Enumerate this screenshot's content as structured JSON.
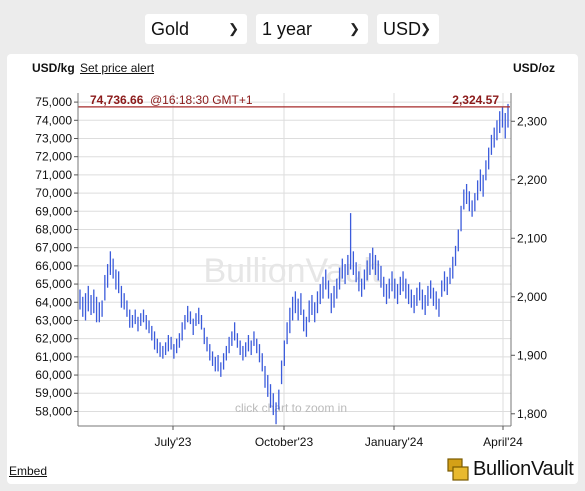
{
  "controls": {
    "metal": "Gold",
    "period": "1 year",
    "currency": "USD"
  },
  "header": {
    "left_unit": "USD/kg",
    "set_alert": "Set price alert",
    "right_unit": "USD/oz"
  },
  "footer": {
    "embed": "Embed",
    "brand": "BullionVault"
  },
  "chart_data": {
    "type": "bar",
    "watermark": "BullionVault",
    "zoom_hint": "click chart to zoom in",
    "current": {
      "price_kg": "74,736.66",
      "time": "@16:18:30 GMT+1",
      "price_oz": "2,324.57"
    },
    "y_left": {
      "unit": "USD/kg",
      "ylim": [
        57200,
        75500
      ],
      "ticks": [
        "58,000",
        "59,000",
        "60,000",
        "61,000",
        "62,000",
        "63,000",
        "64,000",
        "65,000",
        "66,000",
        "67,000",
        "68,000",
        "69,000",
        "70,000",
        "71,000",
        "72,000",
        "73,000",
        "74,000",
        "75,000"
      ]
    },
    "y_right": {
      "unit": "USD/oz",
      "ticks": [
        "1,800",
        "1,900",
        "2,000",
        "2,100",
        "2,200",
        "2,300"
      ]
    },
    "x_ticks": [
      "July'23",
      "October'23",
      "January'24",
      "April'24"
    ],
    "grid": true,
    "colors": {
      "bars": "#3b5bdb",
      "current_line": "#a52a2a",
      "grid": "#dddddd",
      "current_text": "#8b1a1a"
    },
    "daily_high_low_usd_kg": [
      [
        64700,
        63600
      ],
      [
        64300,
        63200
      ],
      [
        64500,
        63000
      ],
      [
        64900,
        63500
      ],
      [
        64400,
        63300
      ],
      [
        64700,
        63400
      ],
      [
        64300,
        62900
      ],
      [
        64000,
        62900
      ],
      [
        64100,
        63200
      ],
      [
        65500,
        64100
      ],
      [
        66100,
        64800
      ],
      [
        66800,
        65500
      ],
      [
        66400,
        65300
      ],
      [
        65800,
        64700
      ],
      [
        65700,
        64500
      ],
      [
        64900,
        63700
      ],
      [
        64500,
        63600
      ],
      [
        64100,
        63200
      ],
      [
        63600,
        62600
      ],
      [
        63300,
        62600
      ],
      [
        63600,
        62800
      ],
      [
        63200,
        62400
      ],
      [
        63400,
        62700
      ],
      [
        63600,
        62900
      ],
      [
        63300,
        62500
      ],
      [
        63000,
        62300
      ],
      [
        62700,
        61900
      ],
      [
        62400,
        61400
      ],
      [
        62000,
        61200
      ],
      [
        61800,
        61000
      ],
      [
        61600,
        60900
      ],
      [
        61800,
        61100
      ],
      [
        62200,
        61300
      ],
      [
        62100,
        61400
      ],
      [
        61700,
        60900
      ],
      [
        62000,
        61200
      ],
      [
        62300,
        61500
      ],
      [
        62900,
        61900
      ],
      [
        63300,
        62500
      ],
      [
        63800,
        62900
      ],
      [
        63500,
        62800
      ],
      [
        63100,
        62200
      ],
      [
        63400,
        62700
      ],
      [
        63700,
        62800
      ],
      [
        63300,
        62500
      ],
      [
        62600,
        61700
      ],
      [
        62100,
        61300
      ],
      [
        61700,
        60800
      ],
      [
        61300,
        60500
      ],
      [
        61000,
        60200
      ],
      [
        61100,
        60200
      ],
      [
        60700,
        59900
      ],
      [
        61200,
        60300
      ],
      [
        61600,
        60800
      ],
      [
        62100,
        61200
      ],
      [
        62400,
        61600
      ],
      [
        62900,
        61900
      ],
      [
        62300,
        61500
      ],
      [
        61900,
        61100
      ],
      [
        61600,
        60800
      ],
      [
        61800,
        61000
      ],
      [
        62200,
        61300
      ],
      [
        61900,
        61100
      ],
      [
        62400,
        61600
      ],
      [
        62000,
        61200
      ],
      [
        61700,
        60700
      ],
      [
        61200,
        60200
      ],
      [
        60500,
        59300
      ],
      [
        60000,
        58800
      ],
      [
        59500,
        58200
      ],
      [
        59000,
        57800
      ],
      [
        58500,
        57300
      ],
      [
        59200,
        58100
      ],
      [
        60800,
        59500
      ],
      [
        61900,
        60500
      ],
      [
        62900,
        61700
      ],
      [
        63700,
        62300
      ],
      [
        64300,
        63000
      ],
      [
        64600,
        63400
      ],
      [
        64200,
        63000
      ],
      [
        64500,
        63300
      ],
      [
        63600,
        62400
      ],
      [
        63200,
        62100
      ],
      [
        64100,
        62900
      ],
      [
        64400,
        63300
      ],
      [
        64000,
        62900
      ],
      [
        64600,
        63400
      ],
      [
        65000,
        63900
      ],
      [
        65400,
        64200
      ],
      [
        65800,
        64700
      ],
      [
        65200,
        64200
      ],
      [
        64500,
        63400
      ],
      [
        64900,
        63700
      ],
      [
        65300,
        64200
      ],
      [
        65900,
        64700
      ],
      [
        66400,
        65300
      ],
      [
        66100,
        65000
      ],
      [
        66600,
        65500
      ],
      [
        68900,
        65800
      ],
      [
        66800,
        65500
      ],
      [
        66200,
        65100
      ],
      [
        65700,
        64600
      ],
      [
        65300,
        64300
      ],
      [
        65800,
        64700
      ],
      [
        66300,
        65200
      ],
      [
        66700,
        65500
      ],
      [
        67000,
        65800
      ],
      [
        66600,
        65500
      ],
      [
        66300,
        65200
      ],
      [
        66000,
        64800
      ],
      [
        65400,
        64300
      ],
      [
        65000,
        63900
      ],
      [
        65300,
        64200
      ],
      [
        65700,
        64600
      ],
      [
        65300,
        64200
      ],
      [
        65000,
        63900
      ],
      [
        65400,
        64400
      ],
      [
        65700,
        64600
      ],
      [
        65300,
        64200
      ],
      [
        65000,
        63900
      ],
      [
        64700,
        63700
      ],
      [
        64400,
        63400
      ],
      [
        64800,
        63800
      ],
      [
        65100,
        64100
      ],
      [
        64700,
        63600
      ],
      [
        64400,
        63300
      ],
      [
        64900,
        63800
      ],
      [
        65200,
        64200
      ],
      [
        64800,
        63800
      ],
      [
        64600,
        63600
      ],
      [
        64200,
        63200
      ],
      [
        65200,
        64300
      ],
      [
        65700,
        64600
      ],
      [
        65400,
        64400
      ],
      [
        65900,
        65000
      ],
      [
        66500,
        65300
      ],
      [
        67100,
        66000
      ],
      [
        68000,
        66800
      ],
      [
        69300,
        67900
      ],
      [
        70200,
        69100
      ],
      [
        70500,
        69400
      ],
      [
        70100,
        69000
      ],
      [
        69600,
        68700
      ],
      [
        70000,
        69000
      ],
      [
        70700,
        69600
      ],
      [
        71300,
        70100
      ],
      [
        71000,
        69800
      ],
      [
        71800,
        70700
      ],
      [
        72500,
        71300
      ],
      [
        73200,
        72100
      ],
      [
        73600,
        72500
      ],
      [
        74000,
        72900
      ],
      [
        74500,
        73300
      ],
      [
        74700,
        73600
      ],
      [
        74400,
        73000
      ],
      [
        74900,
        73600
      ]
    ]
  }
}
